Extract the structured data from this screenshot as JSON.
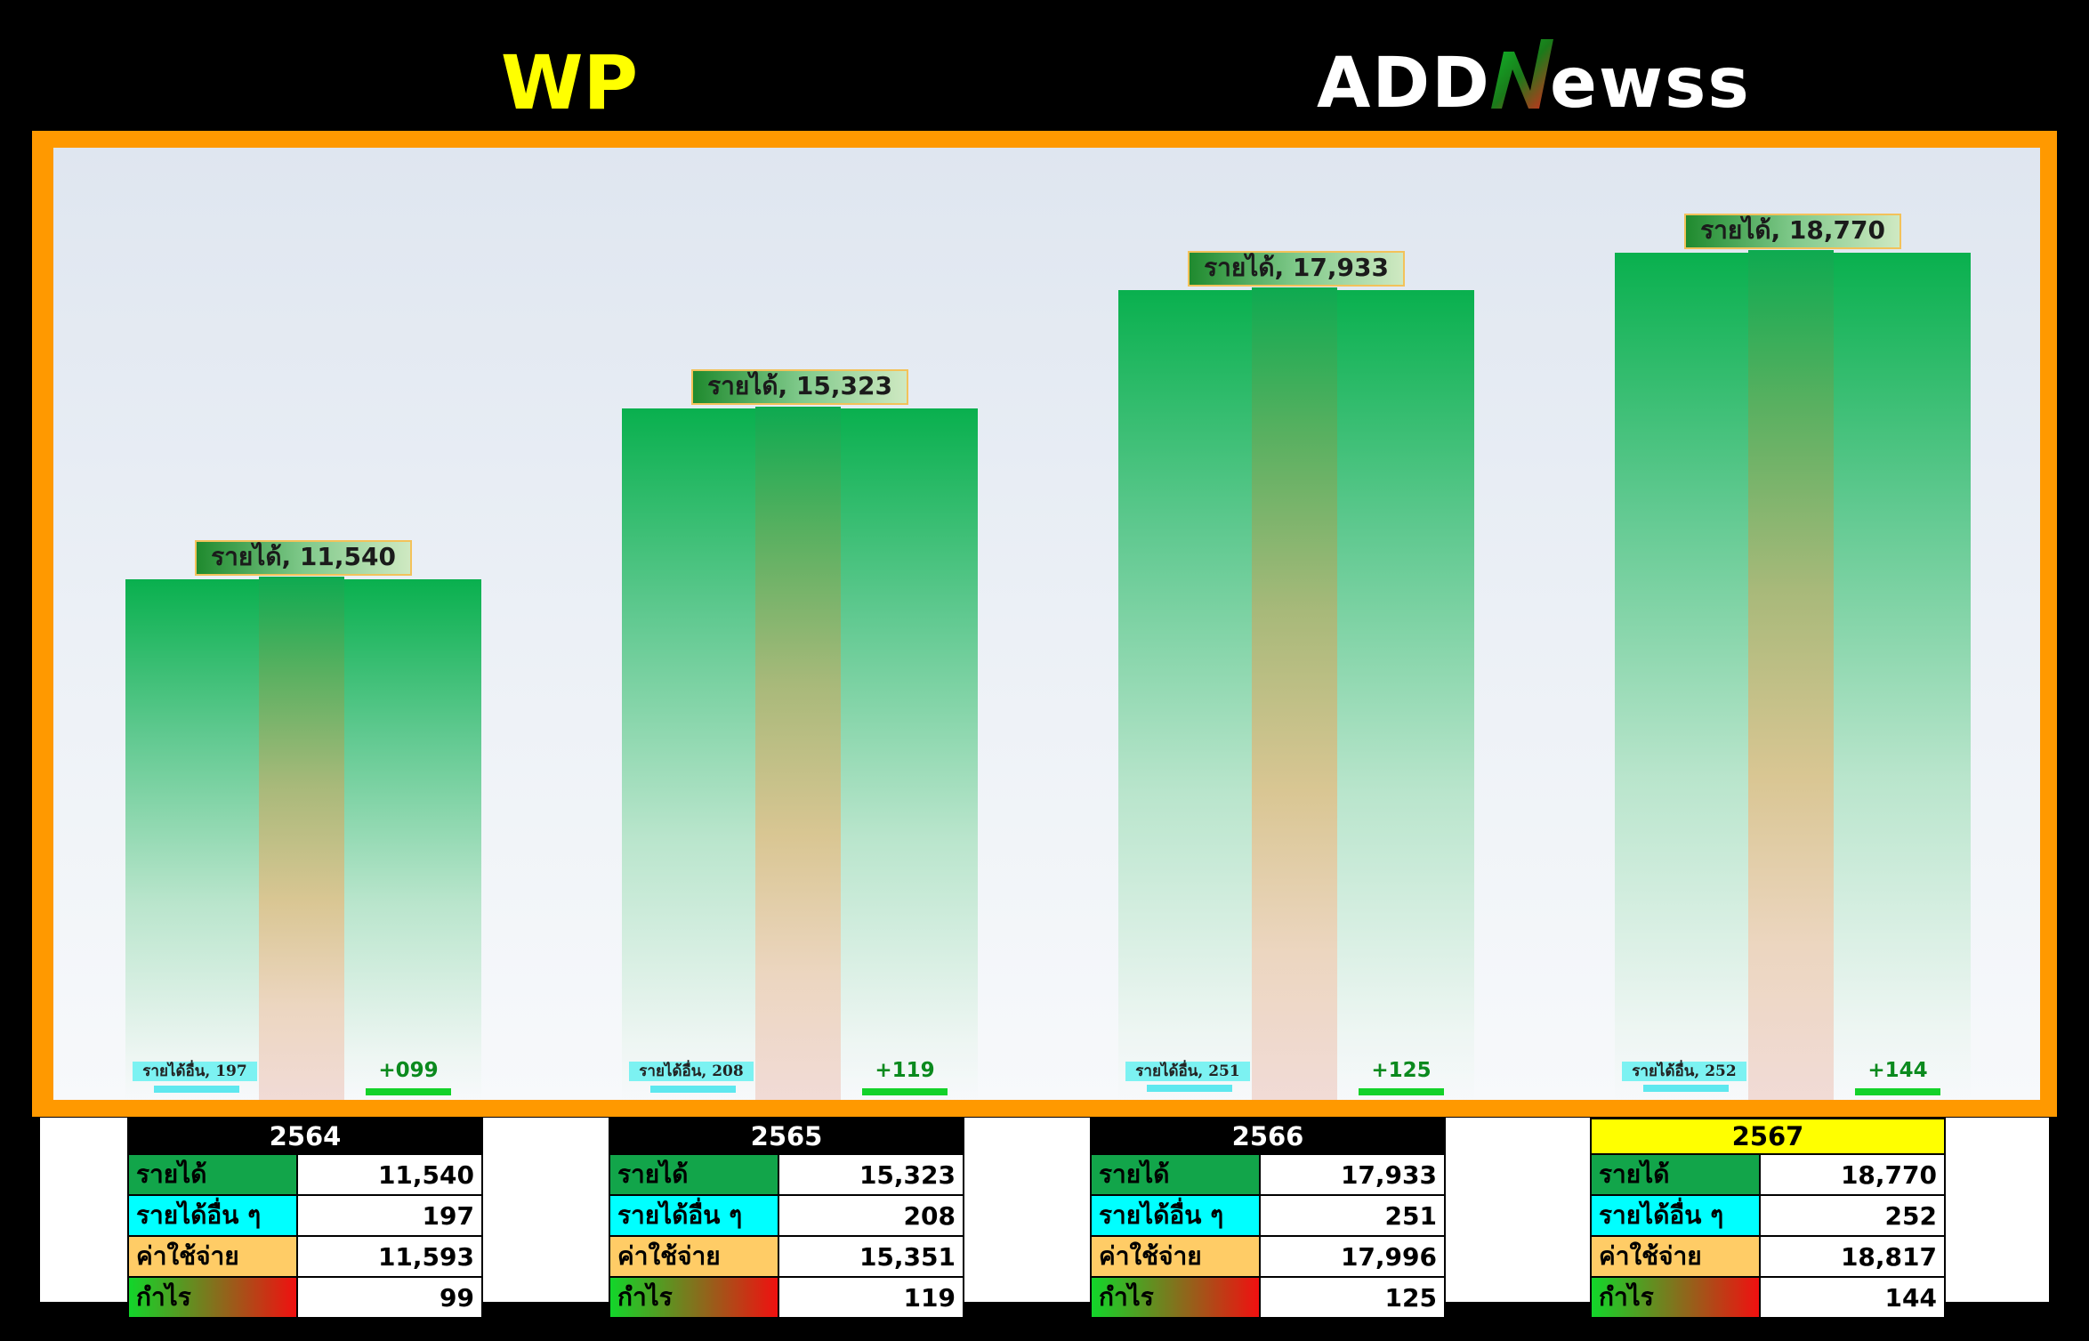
{
  "header": {
    "left_title": "WP",
    "brand_name": "ADDNEWSS"
  },
  "colors": {
    "revenue": "#12a54a",
    "other_income": "#00ffff",
    "expense": "#ffcc66",
    "profit": "#12d62a",
    "frame": "#ff9900",
    "highlight_year": "#ffff00"
  },
  "chart_data": {
    "type": "bar",
    "categories": [
      "2564",
      "2565",
      "2566",
      "2567"
    ],
    "series": [
      {
        "name": "รายได้",
        "values": [
          11540,
          15323,
          17933,
          18770
        ]
      },
      {
        "name": "รายได้อื่น ๆ",
        "values": [
          197,
          208,
          251,
          252
        ]
      },
      {
        "name": "ค่าใช้จ่าย",
        "values": [
          11593,
          15351,
          17996,
          18817
        ]
      },
      {
        "name": "กำไร",
        "values": [
          99,
          119,
          125,
          144
        ]
      }
    ],
    "revenue_labels": [
      "รายได้, 11,540",
      "รายได้, 15,323",
      "รายได้, 17,933",
      "รายได้, 18,770"
    ],
    "other_labels": [
      "รายได้อื่น, 197",
      "รายได้อื่น, 208",
      "รายได้อื่น, 251",
      "รายได้อื่น, 252"
    ],
    "profit_labels": [
      "+099",
      "+119",
      "+125",
      "+144"
    ],
    "ylim": [
      0,
      20500
    ]
  },
  "tables": [
    {
      "year": "2564",
      "highlight": false,
      "rows": [
        {
          "label": "รายได้",
          "value": "11,540"
        },
        {
          "label": "รายได้อื่น ๆ",
          "value": "197"
        },
        {
          "label": "ค่าใช้จ่าย",
          "value": "11,593"
        },
        {
          "label": "กำไร",
          "value": "99"
        }
      ]
    },
    {
      "year": "2565",
      "highlight": false,
      "rows": [
        {
          "label": "รายได้",
          "value": "15,323"
        },
        {
          "label": "รายได้อื่น ๆ",
          "value": "208"
        },
        {
          "label": "ค่าใช้จ่าย",
          "value": "15,351"
        },
        {
          "label": "กำไร",
          "value": "119"
        }
      ]
    },
    {
      "year": "2566",
      "highlight": false,
      "rows": [
        {
          "label": "รายได้",
          "value": "17,933"
        },
        {
          "label": "รายได้อื่น ๆ",
          "value": "251"
        },
        {
          "label": "ค่าใช้จ่าย",
          "value": "17,996"
        },
        {
          "label": "กำไร",
          "value": "125"
        }
      ]
    },
    {
      "year": "2567",
      "highlight": true,
      "rows": [
        {
          "label": "รายได้",
          "value": "18,770"
        },
        {
          "label": "รายได้อื่น ๆ",
          "value": "252"
        },
        {
          "label": "ค่าใช้จ่าย",
          "value": "18,817"
        },
        {
          "label": "กำไร",
          "value": "144"
        }
      ]
    }
  ]
}
